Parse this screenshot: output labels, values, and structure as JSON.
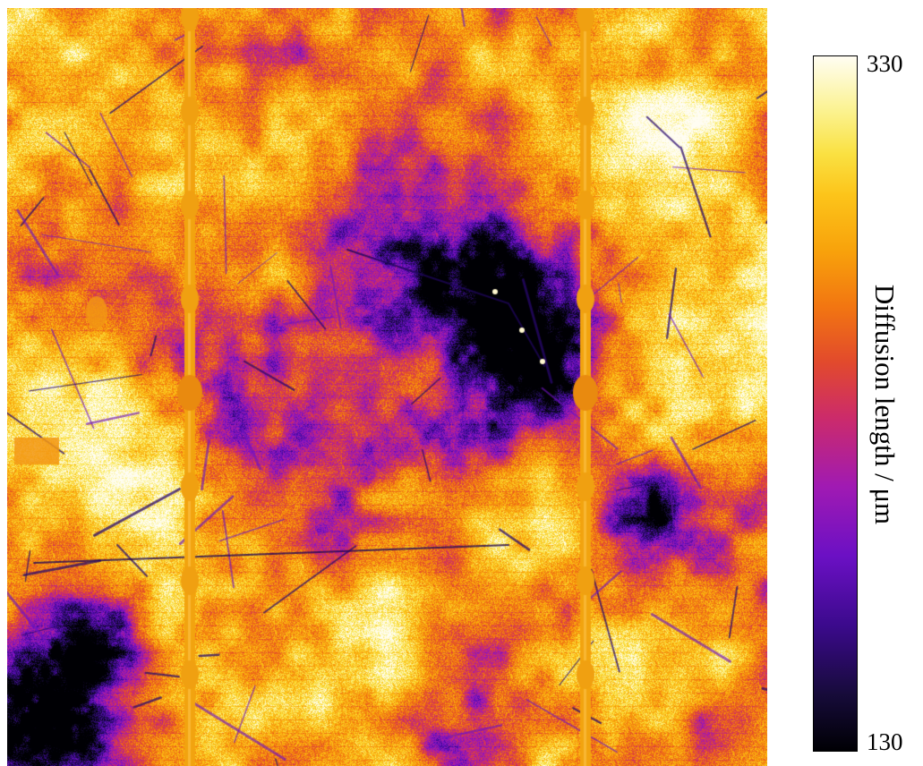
{
  "image": {
    "description_kind": "diffusion-length-map",
    "colormap": "inferno-like",
    "palette": [
      "#000004",
      "#3b0a8c",
      "#a01ab3",
      "#e24a2c",
      "#f8a20b",
      "#fae142",
      "#fffdf2"
    ]
  },
  "colorbar": {
    "max_label": "330",
    "min_label": "130",
    "title": "Diffusion length / μm",
    "value_range": [
      130,
      330
    ]
  }
}
